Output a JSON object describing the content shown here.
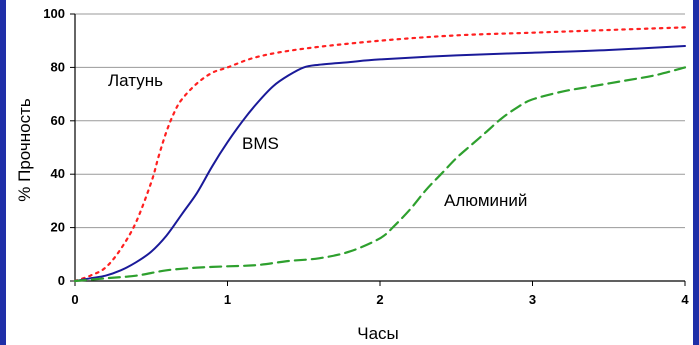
{
  "chart_data": {
    "type": "line",
    "title": "",
    "xlabel": "Часы",
    "ylabel": "% Прочность",
    "xlim": [
      0,
      4
    ],
    "ylim": [
      0,
      100
    ],
    "x_ticks": [
      "0",
      "1",
      "2",
      "3",
      "4"
    ],
    "y_ticks": [
      "0",
      "20",
      "40",
      "60",
      "80",
      "100"
    ],
    "grid": "horizontal",
    "series": [
      {
        "name": "Латунь",
        "color": "#ff2020",
        "style": "dotted",
        "x": [
          0,
          0.1,
          0.2,
          0.3,
          0.4,
          0.5,
          0.55,
          0.6,
          0.65,
          0.7,
          0.8,
          0.9,
          1.0,
          1.2,
          1.5,
          2.0,
          2.5,
          3.0,
          3.5,
          4.0
        ],
        "y": [
          0,
          2,
          5,
          12,
          22,
          37,
          47,
          56,
          63,
          68,
          74,
          78,
          80,
          84,
          87,
          90,
          92,
          93,
          94,
          95
        ]
      },
      {
        "name": "BMS",
        "color": "#1a1a99",
        "style": "solid",
        "x": [
          0,
          0.1,
          0.2,
          0.3,
          0.4,
          0.5,
          0.6,
          0.7,
          0.8,
          0.9,
          1.0,
          1.1,
          1.2,
          1.3,
          1.4,
          1.5,
          1.6,
          1.8,
          2.0,
          2.5,
          3.0,
          3.5,
          4.0
        ],
        "y": [
          0,
          1,
          2,
          4,
          7,
          11,
          17,
          25,
          33,
          43,
          52,
          60,
          67,
          73,
          77,
          80,
          81,
          82,
          83,
          84.5,
          85.5,
          86.5,
          88
        ]
      },
      {
        "name": "Алюминий",
        "color": "#2ea02e",
        "style": "dashed",
        "x": [
          0,
          0.2,
          0.4,
          0.6,
          0.8,
          1.0,
          1.2,
          1.4,
          1.6,
          1.8,
          2.0,
          2.1,
          2.2,
          2.3,
          2.4,
          2.5,
          2.6,
          2.7,
          2.8,
          2.9,
          3.0,
          3.2,
          3.4,
          3.6,
          3.8,
          4.0
        ],
        "y": [
          0,
          1,
          2,
          4,
          5,
          5.5,
          6,
          7.5,
          8.5,
          11,
          16,
          21,
          27,
          34,
          40,
          46,
          51,
          56,
          61,
          65,
          68,
          71,
          73,
          75,
          77,
          80
        ]
      }
    ]
  }
}
